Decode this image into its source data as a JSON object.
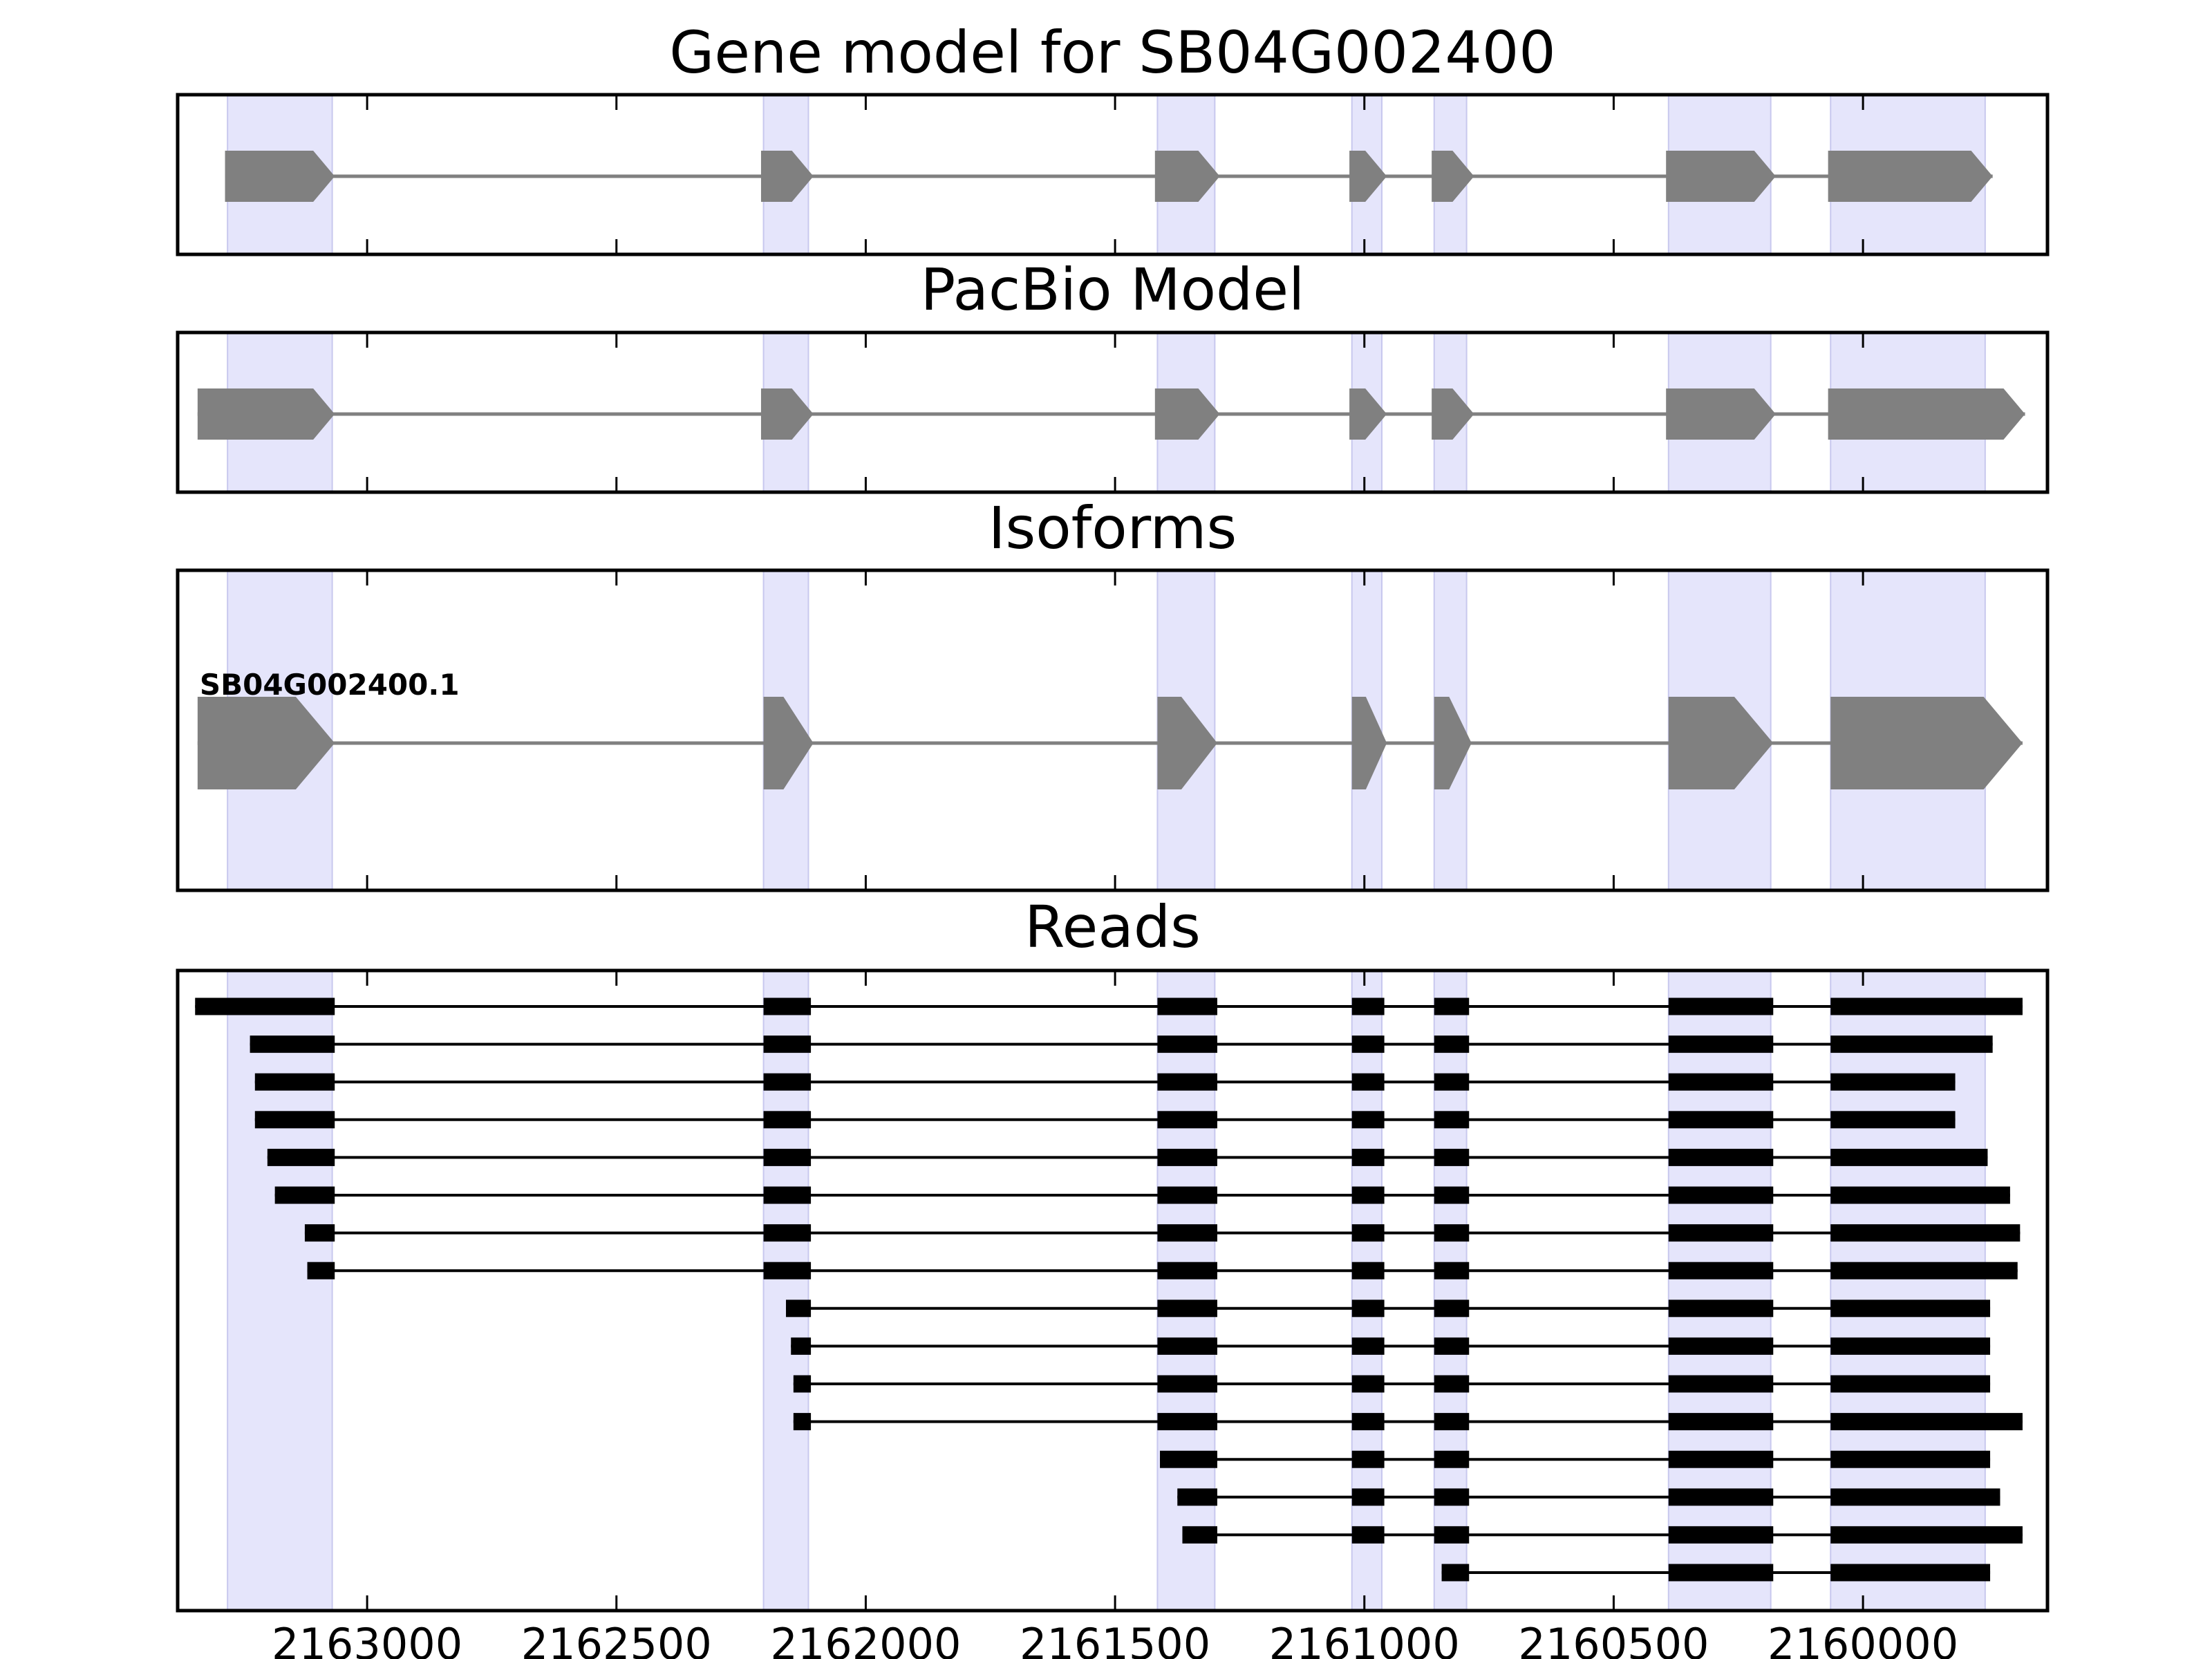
{
  "chart_data": {
    "type": "gene-structure",
    "xlim": [
      2163380,
      2159630
    ],
    "x_ticks": [
      2163000,
      2162500,
      2162000,
      2161500,
      2161000,
      2160500,
      2160000
    ],
    "x_tick_labels": [
      "2163000",
      "2162500",
      "2162000",
      "2161500",
      "2161000",
      "2160500",
      "2160000"
    ],
    "colors": {
      "feature": "#808080",
      "read": "#000000",
      "exon_highlight": "#e5e5fb",
      "highlight_edge": "#c8c8ee"
    },
    "exon_highlights": [
      [
        2163280,
        2163070
      ],
      [
        2162205,
        2162115
      ],
      [
        2161415,
        2161300
      ],
      [
        2161025,
        2160965
      ],
      [
        2160860,
        2160795
      ],
      [
        2160390,
        2160185
      ],
      [
        2160065,
        2159755
      ]
    ],
    "panels": [
      {
        "title": "Gene model for SB04G002400",
        "strand": "-",
        "exons": [
          [
            2163285,
            2163065
          ],
          [
            2162210,
            2162105
          ],
          [
            2161420,
            2161290
          ],
          [
            2161030,
            2160955
          ],
          [
            2160865,
            2160780
          ],
          [
            2160395,
            2160175
          ],
          [
            2160070,
            2159740
          ]
        ]
      },
      {
        "title": "PacBio Model",
        "strand": "-",
        "exons": [
          [
            2163340,
            2163065
          ],
          [
            2162210,
            2162105
          ],
          [
            2161420,
            2161290
          ],
          [
            2161030,
            2160955
          ],
          [
            2160865,
            2160780
          ],
          [
            2160395,
            2160175
          ],
          [
            2160070,
            2159675
          ]
        ]
      },
      {
        "title": "Isoforms",
        "strand": "-",
        "isoforms": [
          {
            "name": "SB04G002400.1",
            "exons": [
              [
                2163340,
                2163065
              ],
              [
                2162205,
                2162105
              ],
              [
                2161415,
                2161295
              ],
              [
                2161025,
                2160955
              ],
              [
                2160860,
                2160785
              ],
              [
                2160390,
                2160180
              ],
              [
                2160065,
                2159680
              ]
            ]
          }
        ]
      },
      {
        "title": "Reads",
        "reads": [
          [
            [
              2163345,
              2163065
            ],
            [
              2162205,
              2162110
            ],
            [
              2161415,
              2161295
            ],
            [
              2161025,
              2160960
            ],
            [
              2160860,
              2160790
            ],
            [
              2160390,
              2160180
            ],
            [
              2160065,
              2159680
            ]
          ],
          [
            [
              2163235,
              2163065
            ],
            [
              2162205,
              2162110
            ],
            [
              2161415,
              2161295
            ],
            [
              2161025,
              2160960
            ],
            [
              2160860,
              2160790
            ],
            [
              2160390,
              2160180
            ],
            [
              2160065,
              2159740
            ]
          ],
          [
            [
              2163225,
              2163065
            ],
            [
              2162205,
              2162110
            ],
            [
              2161415,
              2161295
            ],
            [
              2161025,
              2160960
            ],
            [
              2160860,
              2160790
            ],
            [
              2160390,
              2160180
            ],
            [
              2160065,
              2159815
            ]
          ],
          [
            [
              2163225,
              2163065
            ],
            [
              2162205,
              2162110
            ],
            [
              2161415,
              2161295
            ],
            [
              2161025,
              2160960
            ],
            [
              2160860,
              2160790
            ],
            [
              2160390,
              2160180
            ],
            [
              2160065,
              2159815
            ]
          ],
          [
            [
              2163200,
              2163065
            ],
            [
              2162205,
              2162110
            ],
            [
              2161415,
              2161295
            ],
            [
              2161025,
              2160960
            ],
            [
              2160860,
              2160790
            ],
            [
              2160390,
              2160180
            ],
            [
              2160065,
              2159750
            ]
          ],
          [
            [
              2163185,
              2163065
            ],
            [
              2162205,
              2162110
            ],
            [
              2161415,
              2161295
            ],
            [
              2161025,
              2160960
            ],
            [
              2160860,
              2160790
            ],
            [
              2160390,
              2160180
            ],
            [
              2160065,
              2159705
            ]
          ],
          [
            [
              2163125,
              2163065
            ],
            [
              2162205,
              2162110
            ],
            [
              2161415,
              2161295
            ],
            [
              2161025,
              2160960
            ],
            [
              2160860,
              2160790
            ],
            [
              2160390,
              2160180
            ],
            [
              2160065,
              2159685
            ]
          ],
          [
            [
              2163120,
              2163065
            ],
            [
              2162205,
              2162110
            ],
            [
              2161415,
              2161295
            ],
            [
              2161025,
              2160960
            ],
            [
              2160860,
              2160790
            ],
            [
              2160390,
              2160180
            ],
            [
              2160065,
              2159690
            ]
          ],
          [
            [
              2162160,
              2162110
            ],
            [
              2161415,
              2161295
            ],
            [
              2161025,
              2160960
            ],
            [
              2160860,
              2160790
            ],
            [
              2160390,
              2160180
            ],
            [
              2160065,
              2159745
            ]
          ],
          [
            [
              2162150,
              2162110
            ],
            [
              2161415,
              2161295
            ],
            [
              2161025,
              2160960
            ],
            [
              2160860,
              2160790
            ],
            [
              2160390,
              2160180
            ],
            [
              2160065,
              2159745
            ]
          ],
          [
            [
              2162145,
              2162110
            ],
            [
              2161415,
              2161295
            ],
            [
              2161025,
              2160960
            ],
            [
              2160860,
              2160790
            ],
            [
              2160390,
              2160180
            ],
            [
              2160065,
              2159745
            ]
          ],
          [
            [
              2162145,
              2162110
            ],
            [
              2161415,
              2161295
            ],
            [
              2161025,
              2160960
            ],
            [
              2160860,
              2160790
            ],
            [
              2160390,
              2160180
            ],
            [
              2160065,
              2159680
            ]
          ],
          [
            [
              2161410,
              2161295
            ],
            [
              2161025,
              2160960
            ],
            [
              2160860,
              2160790
            ],
            [
              2160390,
              2160180
            ],
            [
              2160065,
              2159745
            ]
          ],
          [
            [
              2161375,
              2161295
            ],
            [
              2161025,
              2160960
            ],
            [
              2160860,
              2160790
            ],
            [
              2160390,
              2160180
            ],
            [
              2160065,
              2159725
            ]
          ],
          [
            [
              2161365,
              2161295
            ],
            [
              2161025,
              2160960
            ],
            [
              2160860,
              2160790
            ],
            [
              2160390,
              2160180
            ],
            [
              2160065,
              2159680
            ]
          ],
          [
            [
              2160845,
              2160790
            ],
            [
              2160390,
              2160180
            ],
            [
              2160065,
              2159745
            ]
          ]
        ]
      }
    ]
  }
}
